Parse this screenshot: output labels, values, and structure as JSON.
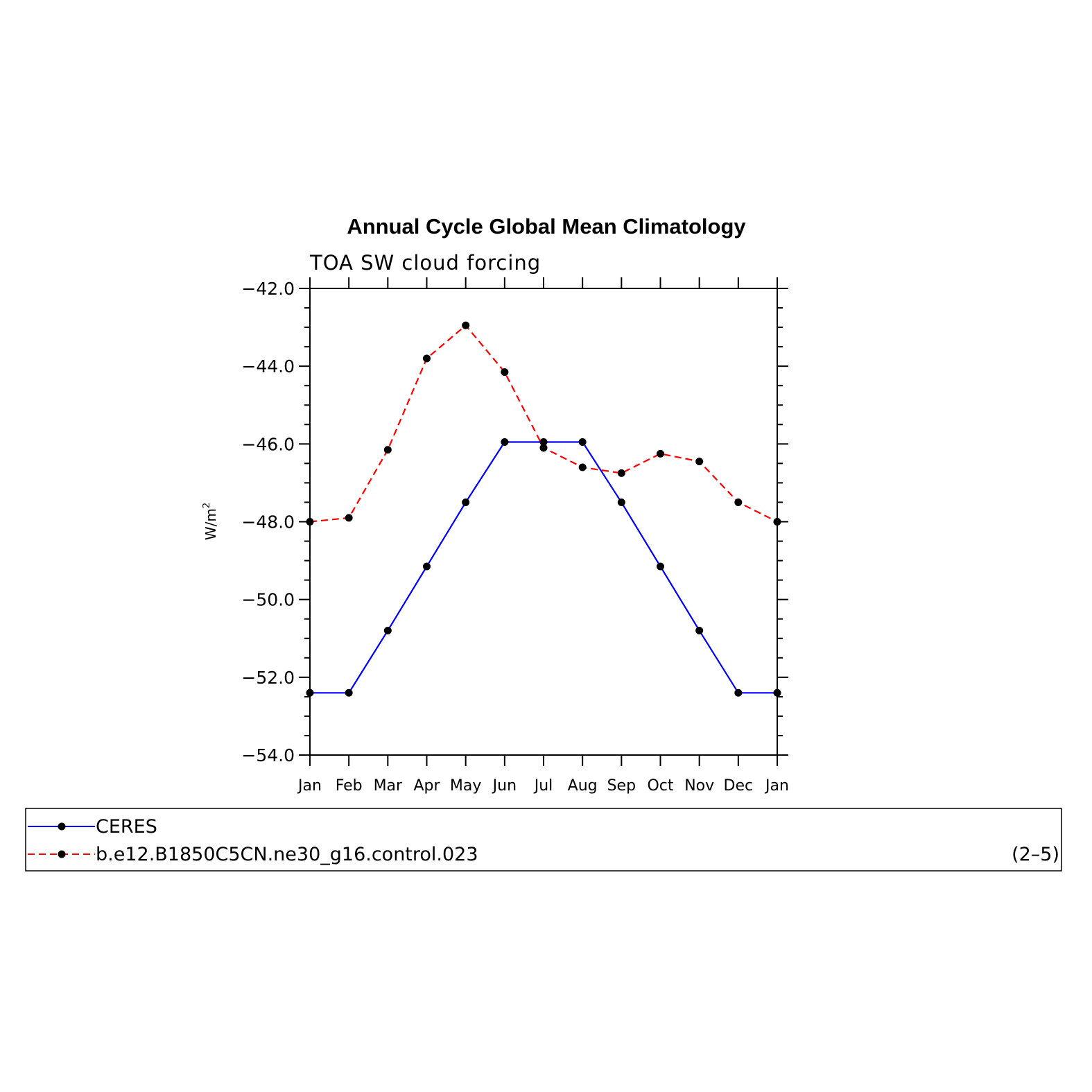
{
  "chart_data": {
    "type": "line",
    "title": "Annual Cycle Global Mean Climatology",
    "subtitle": "TOA SW cloud forcing",
    "ylabel": "W/m",
    "ylabel_superscript": "2",
    "ylim": [
      -54.0,
      -42.0
    ],
    "yticks": [
      "-42.0",
      "-44.0",
      "-46.0",
      "-48.0",
      "-50.0",
      "-52.0",
      "-54.0"
    ],
    "categories": [
      "Jan",
      "Feb",
      "Mar",
      "Apr",
      "May",
      "Jun",
      "Jul",
      "Aug",
      "Sep",
      "Oct",
      "Nov",
      "Dec",
      "Jan"
    ],
    "series": [
      {
        "name": "CERES",
        "color": "#0000ff",
        "dash": "solid",
        "values": [
          -52.4,
          -52.4,
          -50.8,
          -49.15,
          -47.5,
          -45.95,
          -45.95,
          -45.95,
          -47.5,
          -49.15,
          -50.8,
          -52.4,
          -52.4
        ]
      },
      {
        "name": "b.e12.B1850C5CN.ne30_g16.control.023",
        "color": "#ff0000",
        "dash": "dashed",
        "values": [
          -48.0,
          -47.9,
          -46.15,
          -43.8,
          -42.95,
          -44.15,
          -46.1,
          -46.6,
          -46.75,
          -46.25,
          -46.45,
          -47.5,
          -48.0
        ]
      }
    ],
    "legend_position": "bottom",
    "annotation": "(2–5)"
  }
}
